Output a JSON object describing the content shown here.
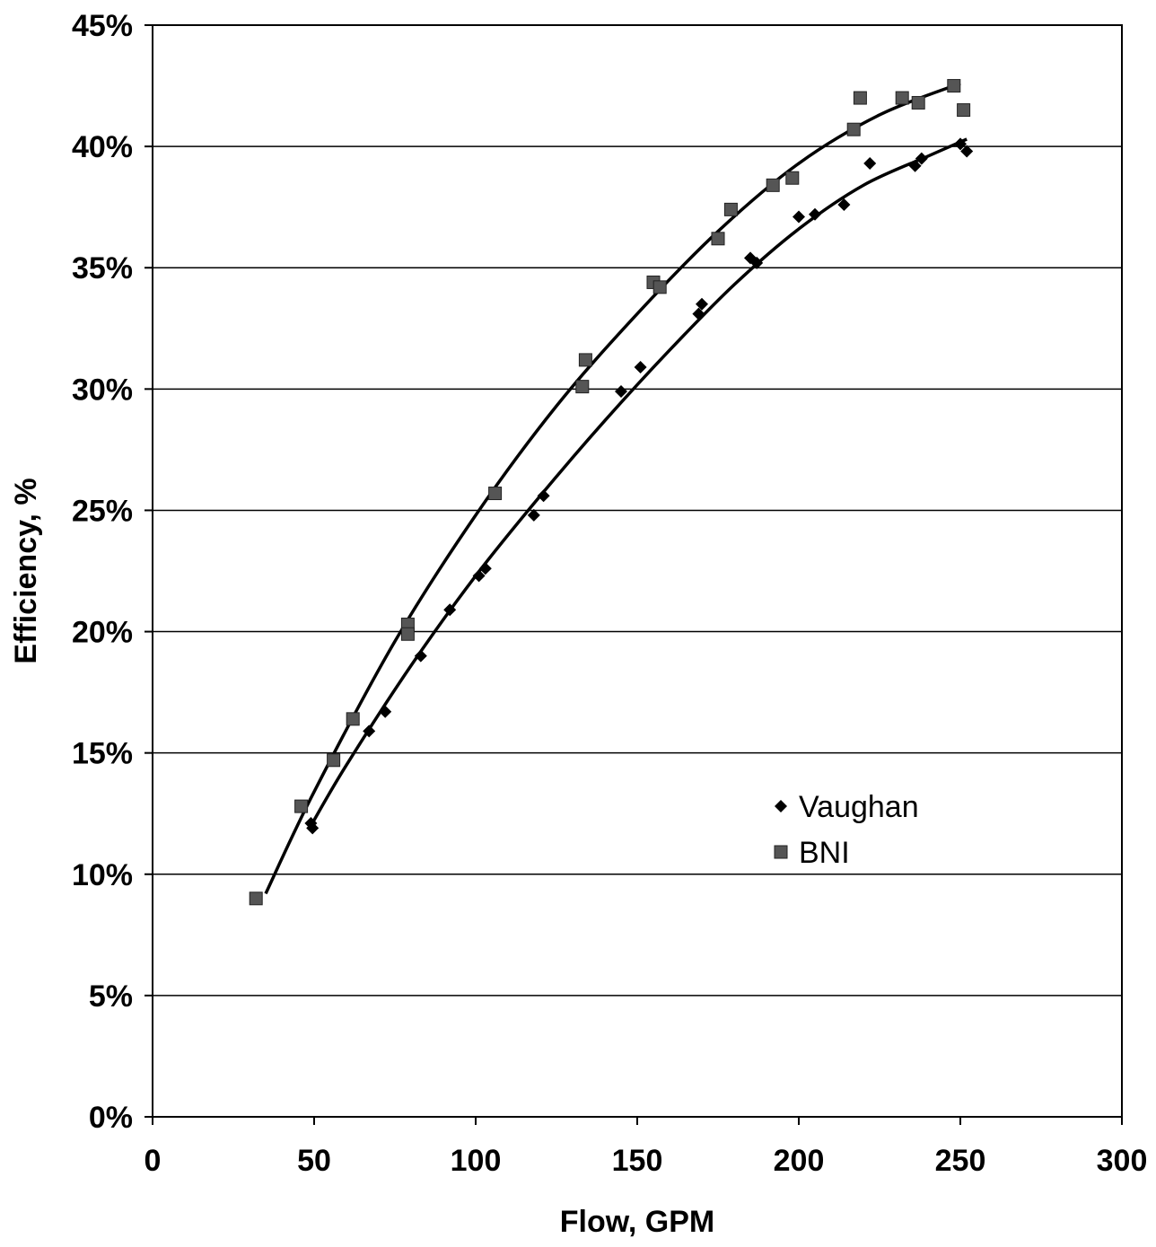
{
  "chart_data": {
    "type": "scatter",
    "title": "",
    "xlabel": "Flow, GPM",
    "ylabel": "Efficiency, %",
    "xlim": [
      0,
      300
    ],
    "ylim": [
      0,
      45
    ],
    "xticks": [
      0,
      50,
      100,
      150,
      200,
      250,
      300
    ],
    "yticks": [
      0,
      5,
      10,
      15,
      20,
      25,
      30,
      35,
      40,
      45
    ],
    "xtick_labels": [
      "0",
      "50",
      "100",
      "150",
      "200",
      "250",
      "300"
    ],
    "ytick_labels": [
      "0%",
      "5%",
      "10%",
      "15%",
      "20%",
      "25%",
      "30%",
      "35%",
      "40%",
      "45%"
    ],
    "grid": "horizontal",
    "legend": "center-right",
    "series": [
      {
        "name": "Vaughan",
        "marker": "diamond",
        "color": "#000000",
        "points": [
          [
            49,
            12.1
          ],
          [
            49.5,
            11.9
          ],
          [
            67,
            15.9
          ],
          [
            72,
            16.7
          ],
          [
            83,
            19.0
          ],
          [
            92,
            20.9
          ],
          [
            101,
            22.3
          ],
          [
            103,
            22.6
          ],
          [
            118,
            24.8
          ],
          [
            121,
            25.6
          ],
          [
            145,
            29.9
          ],
          [
            151,
            30.9
          ],
          [
            169,
            33.1
          ],
          [
            170,
            33.5
          ],
          [
            185,
            35.4
          ],
          [
            187,
            35.2
          ],
          [
            200,
            37.1
          ],
          [
            205,
            37.2
          ],
          [
            214,
            37.6
          ],
          [
            222,
            39.3
          ],
          [
            236,
            39.2
          ],
          [
            238,
            39.5
          ],
          [
            250,
            40.1
          ],
          [
            252,
            39.8
          ]
        ],
        "trendline": [
          [
            49,
            12.0
          ],
          [
            60,
            14.5
          ],
          [
            80,
            18.6
          ],
          [
            100,
            22.3
          ],
          [
            120,
            25.6
          ],
          [
            140,
            28.7
          ],
          [
            160,
            31.6
          ],
          [
            180,
            34.3
          ],
          [
            200,
            36.6
          ],
          [
            220,
            38.4
          ],
          [
            240,
            39.6
          ],
          [
            252,
            40.3
          ]
        ]
      },
      {
        "name": "BNI",
        "marker": "square",
        "color": "#555555",
        "points": [
          [
            32,
            9.0
          ],
          [
            46,
            12.8
          ],
          [
            56,
            14.7
          ],
          [
            62,
            16.4
          ],
          [
            79,
            20.3
          ],
          [
            79,
            19.9
          ],
          [
            106,
            25.7
          ],
          [
            133,
            30.1
          ],
          [
            134,
            31.2
          ],
          [
            155,
            34.4
          ],
          [
            157,
            34.2
          ],
          [
            175,
            36.2
          ],
          [
            179,
            37.4
          ],
          [
            192,
            38.4
          ],
          [
            198,
            38.7
          ],
          [
            217,
            40.7
          ],
          [
            219,
            42.0
          ],
          [
            232,
            42.0
          ],
          [
            237,
            41.8
          ],
          [
            248,
            42.5
          ],
          [
            251,
            41.5
          ]
        ],
        "trendline": [
          [
            35,
            9.2
          ],
          [
            50,
            13.4
          ],
          [
            75,
            19.6
          ],
          [
            100,
            24.8
          ],
          [
            125,
            29.3
          ],
          [
            150,
            33.1
          ],
          [
            175,
            36.5
          ],
          [
            200,
            39.3
          ],
          [
            225,
            41.3
          ],
          [
            250,
            42.6
          ]
        ]
      }
    ]
  }
}
